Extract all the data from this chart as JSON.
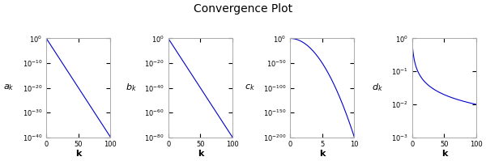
{
  "title": "Convergence Plot",
  "plots": [
    {
      "label": "a",
      "subscript": "k",
      "xlabel": "k",
      "xmin": 0,
      "xmax": 100,
      "ymin": 1e-40,
      "ymax": 1.0,
      "sequence": "linear_exp",
      "alpha": 0.4,
      "n": 201,
      "ytick_exponents": [
        0,
        -10,
        -20,
        -30,
        -40
      ],
      "xticks": [
        0,
        50,
        100
      ]
    },
    {
      "label": "b",
      "subscript": "k",
      "xlabel": "k",
      "xmin": 0,
      "xmax": 100,
      "ymin": 1e-80,
      "ymax": 1.0,
      "sequence": "linear_exp",
      "alpha": 0.8,
      "n": 201,
      "ytick_exponents": [
        0,
        -20,
        -40,
        -60,
        -80
      ],
      "xticks": [
        0,
        50,
        100
      ]
    },
    {
      "label": "c",
      "subscript": "k",
      "xlabel": "k",
      "xmin": 0,
      "xmax": 10,
      "ymin": 1e-200,
      "ymax": 1.0,
      "sequence": "super_exp",
      "alpha": 2.0,
      "n": 1000,
      "ytick_exponents": [
        0,
        -50,
        -100,
        -150,
        -200
      ],
      "xticks": [
        0,
        5,
        10
      ]
    },
    {
      "label": "d",
      "subscript": "k",
      "xlabel": "k",
      "xmin": 0,
      "xmax": 100,
      "ymin": 0.001,
      "ymax": 1.0,
      "sequence": "slow_decay",
      "alpha": 1.0,
      "n": 1000,
      "ytick_exponents": [
        0,
        -1,
        -2,
        -3
      ],
      "xticks": [
        0,
        50,
        100
      ]
    }
  ],
  "line_color": "#0000CC",
  "line_width": 0.8,
  "title_fontsize": 10,
  "xlabel_fontsize": 8,
  "tick_fontsize": 6,
  "ylabel_fontsize": 8
}
